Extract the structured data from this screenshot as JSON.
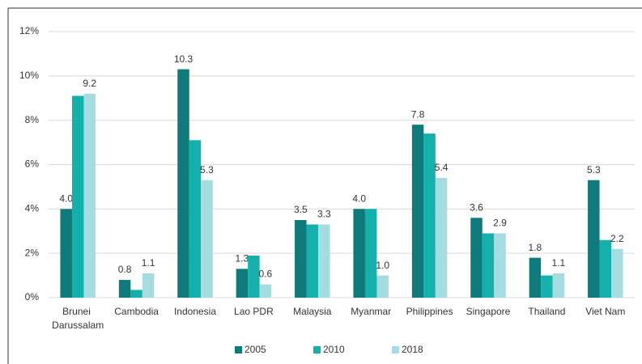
{
  "chart_data": {
    "type": "bar",
    "categories": [
      "Brunei Darussalam",
      "Cambodia",
      "Indonesia",
      "Lao PDR",
      "Malaysia",
      "Myanmar",
      "Philippines",
      "Singapore",
      "Thailand",
      "Viet Nam"
    ],
    "series": [
      {
        "name": "2005",
        "color": "#0e7a7a",
        "values": [
          4.0,
          0.8,
          10.3,
          1.3,
          3.5,
          4.0,
          7.8,
          3.6,
          1.8,
          5.3
        ],
        "value_labels": [
          "4.0",
          "0.8",
          "10.3",
          "1.3",
          "3.5",
          "4.0",
          "7.8",
          "3.6",
          "1.8",
          "5.3"
        ]
      },
      {
        "name": "2010",
        "color": "#14b1ac",
        "values": [
          9.1,
          0.35,
          7.1,
          1.9,
          3.3,
          4.0,
          7.4,
          2.9,
          1.0,
          2.6
        ]
      },
      {
        "name": "2018",
        "color": "#a5dcdf",
        "values": [
          9.2,
          1.1,
          5.3,
          0.6,
          3.3,
          1.0,
          5.4,
          2.9,
          1.1,
          2.2
        ],
        "value_labels": [
          "9.2",
          "1.1",
          "5.3",
          "0.6",
          "3.3",
          "1.0",
          "5.4",
          "2.9",
          "1.1",
          "2.2"
        ]
      }
    ],
    "ylim": [
      0,
      12
    ],
    "yticks": [
      {
        "value": 0,
        "label": "0%"
      },
      {
        "value": 2,
        "label": "2%"
      },
      {
        "value": 4,
        "label": "4%"
      },
      {
        "value": 6,
        "label": "6%"
      },
      {
        "value": 8,
        "label": "8%"
      },
      {
        "value": 10,
        "label": "10%"
      },
      {
        "value": 12,
        "label": "12%"
      }
    ],
    "grid": true,
    "legend": "bottom"
  }
}
